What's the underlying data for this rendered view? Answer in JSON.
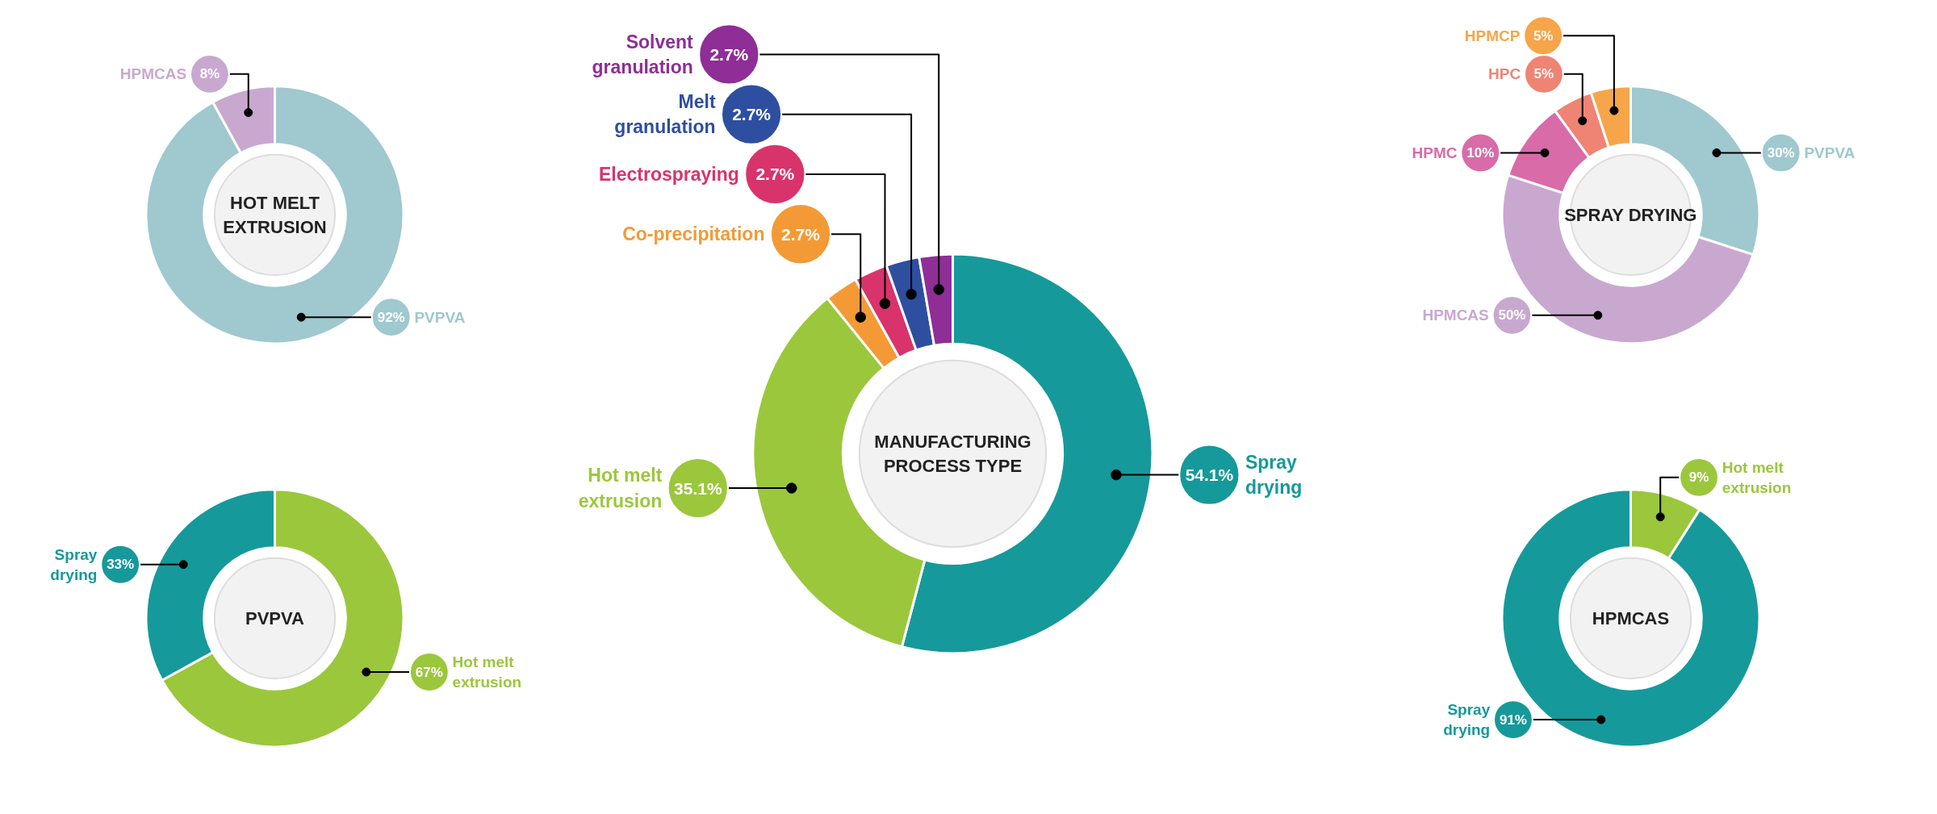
{
  "chart_data": [
    {
      "type": "donut",
      "title": "HOT MELT EXTRUSION",
      "categories": [
        "PVPVA",
        "HPMCAS"
      ],
      "values": [
        92,
        8
      ],
      "colors": [
        "#9fc8cf",
        "#c9a8d0"
      ],
      "value_labels": [
        "92%",
        "8%"
      ]
    },
    {
      "type": "donut",
      "title": "PVPVA",
      "categories": [
        "Hot melt extrusion",
        "Spray drying"
      ],
      "values": [
        67,
        33
      ],
      "colors": [
        "#9bc73c",
        "#16999a"
      ],
      "value_labels": [
        "67%",
        "33%"
      ]
    },
    {
      "type": "donut",
      "title": "MANUFACTURING PROCESS TYPE",
      "categories": [
        "Spray drying",
        "Hot melt extrusion",
        "Co-precipitation",
        "Electrospraying",
        "Melt granulation",
        "Solvent granulation"
      ],
      "values": [
        54.1,
        35.1,
        2.7,
        2.7,
        2.7,
        2.7
      ],
      "colors": [
        "#16999a",
        "#9bc73c",
        "#f39a36",
        "#d9336b",
        "#2e4fa0",
        "#8e2e96"
      ],
      "value_labels": [
        "54.1%",
        "35.1%",
        "2.7%",
        "2.7%",
        "2.7%",
        "2.7%"
      ]
    },
    {
      "type": "donut",
      "title": "SPRAY DRYING",
      "categories": [
        "PVPVA",
        "HPMCAS",
        "HPMC",
        "HPC",
        "HPMCP"
      ],
      "values": [
        30,
        50,
        10,
        5,
        5
      ],
      "colors": [
        "#9fc8cf",
        "#c9a8d0",
        "#d86ba8",
        "#ef8474",
        "#f6a54a"
      ],
      "value_labels": [
        "30%",
        "50%",
        "10%",
        "5%",
        "5%"
      ]
    },
    {
      "type": "donut",
      "title": "HPMCAS",
      "categories": [
        "Hot melt extrusion",
        "Spray drying"
      ],
      "values": [
        9,
        91
      ],
      "colors": [
        "#9bc73c",
        "#16999a"
      ],
      "value_labels": [
        "9%",
        "91%"
      ]
    }
  ]
}
